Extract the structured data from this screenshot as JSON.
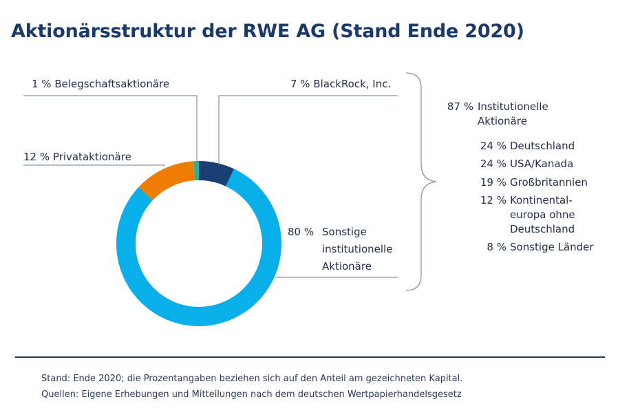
{
  "title": "Aktionärsstruktur der RWE AG (Stand Ende 2020)",
  "chart_data": {
    "type": "pie",
    "style": "donut",
    "slices": [
      {
        "label": "BlackRock, Inc.",
        "value": 7,
        "pct_text": "7 %",
        "color": "#1a3f73"
      },
      {
        "label": "Sonstige institutionelle Aktionäre",
        "value": 80,
        "pct_text": "80 %",
        "color": "#0aaee8"
      },
      {
        "label": "Privataktionäre",
        "value": 12,
        "pct_text": "12 %",
        "color": "#ee7d05"
      },
      {
        "label": "Belegschaftsaktionäre",
        "value": 1,
        "pct_text": "1 %",
        "color": "#2fae9c"
      }
    ],
    "labels": {
      "belegschaft": "1 % Belegschaftsaktionäre",
      "blackrock": "7 % BlackRock, Inc.",
      "privat": "12 % Privataktionäre",
      "sonstige_pct": "80 %",
      "sonstige_line1": "Sonstige",
      "sonstige_line2": "institutionelle",
      "sonstige_line3": "Aktionäre"
    },
    "breakdown": {
      "total_pct": "87 %",
      "total_label_line1": "Institutionelle",
      "total_label_line2": "Aktionäre",
      "items": [
        {
          "pct": "24 %",
          "label": "Deutschland"
        },
        {
          "pct": "24 %",
          "label": "USA/Kanada"
        },
        {
          "pct": "19 %",
          "label": "Großbritannien"
        },
        {
          "pct": "12 %",
          "label_lines": [
            "Kontinental-",
            "europa ohne",
            "Deutschland"
          ]
        },
        {
          "pct": "8 %",
          "label": "Sonstige Länder"
        }
      ]
    }
  },
  "footer": {
    "line1": "Stand: Ende 2020; die Prozentangaben beziehen sich auf den Anteil am gezeichneten Kapital.",
    "line2": "Quellen: Eigene Erhebungen und Mitteilungen nach dem deutschen Wertpapierhandelsgesetz"
  }
}
